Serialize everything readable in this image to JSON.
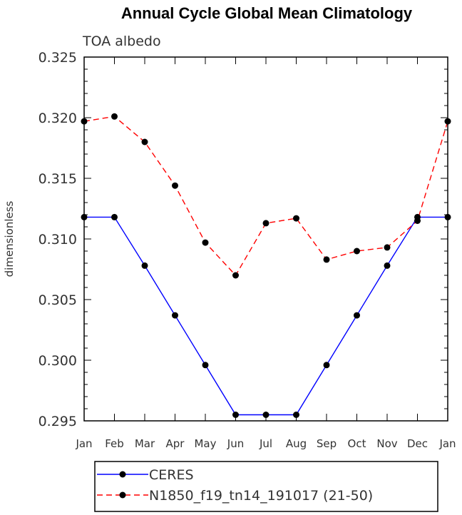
{
  "chart_data": {
    "type": "line",
    "title": "Annual Cycle Global Mean Climatology",
    "subtitle": "TOA albedo",
    "xlabel": "",
    "ylabel": "dimensionless",
    "categories": [
      "Jan",
      "Feb",
      "Mar",
      "Apr",
      "May",
      "Jun",
      "Jul",
      "Aug",
      "Sep",
      "Oct",
      "Nov",
      "Dec",
      "Jan"
    ],
    "ylim": [
      0.295,
      0.325
    ],
    "yticks": [
      "0.295",
      "0.300",
      "0.305",
      "0.310",
      "0.315",
      "0.320",
      "0.325"
    ],
    "grid": false,
    "legend_position": "bottom",
    "series": [
      {
        "name": "CERES",
        "color": "#0000ff",
        "dash": "solid",
        "values": [
          0.3118,
          0.3118,
          0.3078,
          0.3037,
          0.2996,
          0.2955,
          0.2955,
          0.2955,
          0.2996,
          0.3037,
          0.3078,
          0.3118,
          0.3118
        ]
      },
      {
        "name": "N1850_f19_tn14_191017 (21-50)",
        "color": "#ff0000",
        "dash": "dashed",
        "values": [
          0.3197,
          0.3201,
          0.318,
          0.3144,
          0.3097,
          0.307,
          0.3113,
          0.3117,
          0.3083,
          0.309,
          0.3093,
          0.3115,
          0.3197
        ]
      }
    ]
  }
}
